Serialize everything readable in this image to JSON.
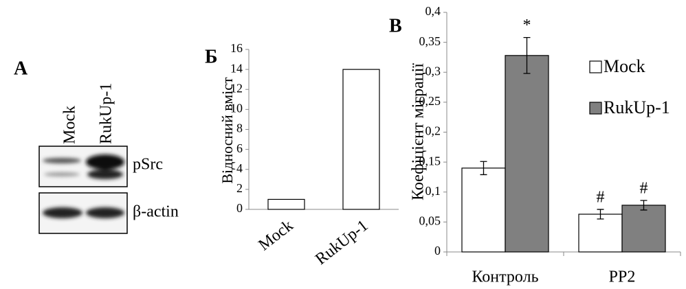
{
  "blot": {
    "label": "A",
    "lanes": [
      "Mock",
      "RukUp-1"
    ],
    "bands": [
      "pSrc",
      "β-actin"
    ]
  },
  "chart_data": [
    {
      "type": "bar",
      "label": "Б",
      "ylabel": "Відносний вміст",
      "categories": [
        "Mock",
        "RukUp-1"
      ],
      "values": [
        1,
        14
      ],
      "color": "#ffffff",
      "ylim": [
        0,
        16
      ],
      "yticks": [
        0,
        2,
        4,
        6,
        8,
        10,
        12,
        14,
        16
      ]
    },
    {
      "type": "grouped-bar",
      "label": "B",
      "ylabel": "Коефіцієнт міграції",
      "categories": [
        "Контроль",
        "PP2"
      ],
      "series": [
        {
          "name": "Mock",
          "color": "#ffffff",
          "values": [
            0.14,
            0.063
          ],
          "errors": [
            0.011,
            0.008
          ],
          "markers": [
            null,
            "#"
          ]
        },
        {
          "name": "RukUp-1",
          "color": "#808080",
          "values": [
            0.328,
            0.078
          ],
          "errors": [
            0.03,
            0.008
          ],
          "markers": [
            "*",
            "#"
          ]
        }
      ],
      "ylim": [
        0,
        0.4
      ],
      "yticks": [
        0,
        {
          "value": 0.05,
          "label": "0,05"
        },
        {
          "value": 0.1,
          "label": "0,1"
        },
        {
          "value": 0.15,
          "label": "0,15"
        },
        {
          "value": 0.2,
          "label": "0,2"
        },
        {
          "value": 0.25,
          "label": "0,25"
        },
        {
          "value": 0.3,
          "label": "0,3"
        },
        {
          "value": 0.35,
          "label": "0,35"
        },
        {
          "value": 0.4,
          "label": "0,4"
        }
      ],
      "legend": "right"
    }
  ]
}
